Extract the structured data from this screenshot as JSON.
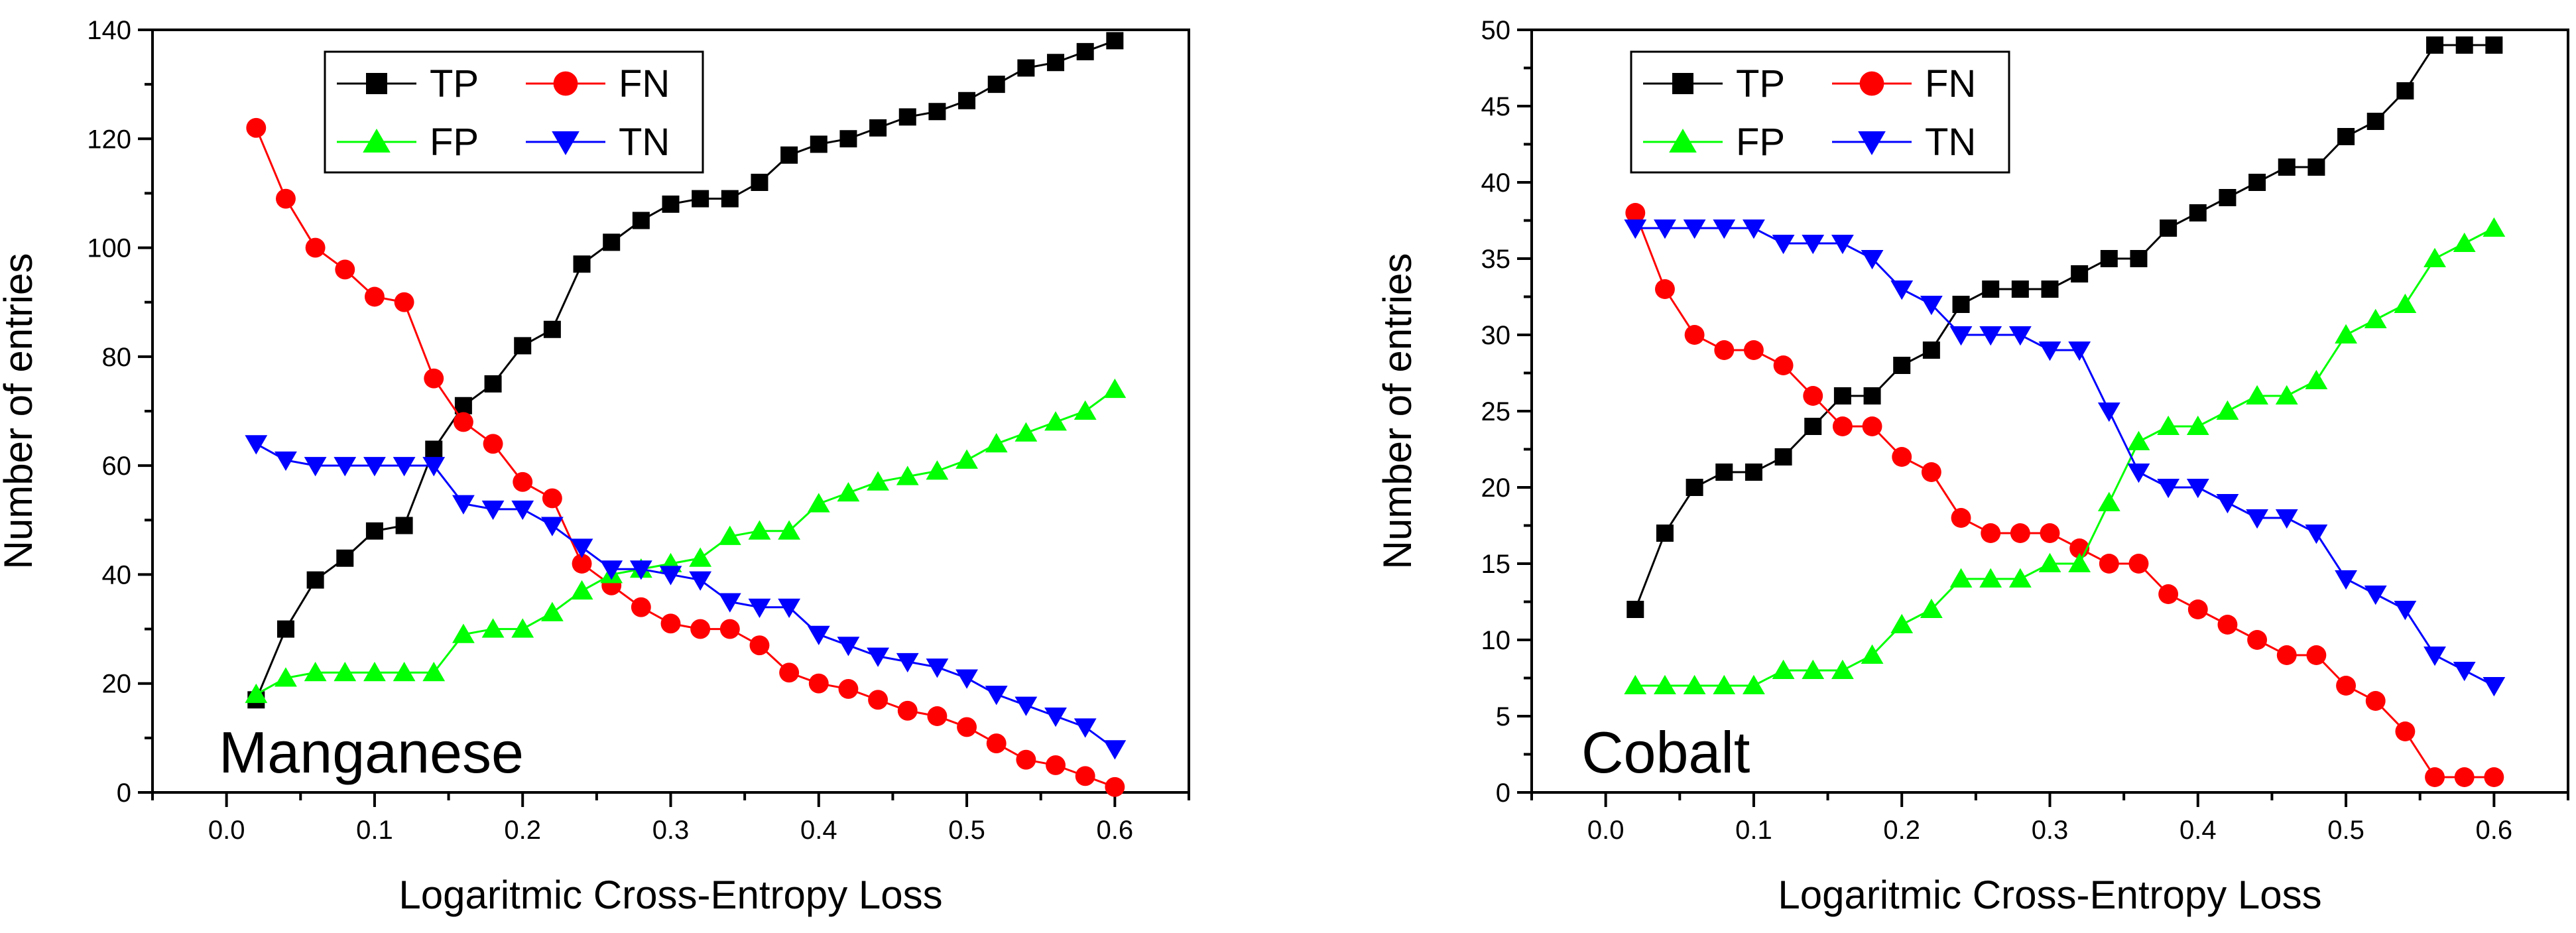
{
  "chart_data": [
    {
      "type": "line",
      "title": "",
      "panel_label": "Manganese",
      "xlabel": "Logaritmic Cross-Entropy Loss",
      "ylabel": "Number of entries",
      "xlim": [
        -0.05,
        0.65
      ],
      "ylim": [
        0,
        140
      ],
      "xticks": [
        "0.0",
        "0.1",
        "0.2",
        "0.3",
        "0.4",
        "0.5",
        "0.6"
      ],
      "xtick_values": [
        0.0,
        0.1,
        0.2,
        0.3,
        0.4,
        0.5,
        0.6
      ],
      "yticks": [
        "0",
        "20",
        "40",
        "60",
        "80",
        "100",
        "120",
        "140"
      ],
      "ytick_values": [
        0,
        20,
        40,
        60,
        80,
        100,
        120,
        140
      ],
      "legend_position": "top-left",
      "x": [
        0.02,
        0.04,
        0.06,
        0.08,
        0.1,
        0.12,
        0.14,
        0.16,
        0.18,
        0.2,
        0.22,
        0.24,
        0.26,
        0.28,
        0.3,
        0.32,
        0.34,
        0.36,
        0.38,
        0.4,
        0.42,
        0.44,
        0.46,
        0.48,
        0.5,
        0.52,
        0.54,
        0.56,
        0.58,
        0.6
      ],
      "series": [
        {
          "name": "TP",
          "color": "#000000",
          "marker": "square",
          "values": [
            17,
            30,
            39,
            43,
            48,
            49,
            63,
            71,
            75,
            82,
            85,
            97,
            101,
            105,
            108,
            109,
            109,
            112,
            117,
            119,
            120,
            122,
            124,
            125,
            127,
            130,
            133,
            134,
            136,
            138
          ]
        },
        {
          "name": "FN",
          "color": "#ff0000",
          "marker": "circle",
          "values": [
            122,
            109,
            100,
            96,
            91,
            90,
            76,
            68,
            64,
            57,
            54,
            42,
            38,
            34,
            31,
            30,
            30,
            27,
            22,
            20,
            19,
            17,
            15,
            14,
            12,
            9,
            6,
            5,
            3,
            1
          ]
        },
        {
          "name": "FP",
          "color": "#00ff00",
          "marker": "triangle-up",
          "values": [
            18,
            21,
            22,
            22,
            22,
            22,
            22,
            29,
            30,
            30,
            33,
            37,
            40,
            41,
            42,
            43,
            47,
            48,
            48,
            53,
            55,
            57,
            58,
            59,
            61,
            64,
            66,
            68,
            70,
            74
          ]
        },
        {
          "name": "TN",
          "color": "#0000ff",
          "marker": "triangle-down",
          "values": [
            64,
            61,
            60,
            60,
            60,
            60,
            60,
            53,
            52,
            52,
            49,
            45,
            41,
            41,
            40,
            39,
            35,
            34,
            34,
            29,
            27,
            25,
            24,
            23,
            21,
            18,
            16,
            14,
            12,
            8
          ]
        }
      ]
    },
    {
      "type": "line",
      "title": "",
      "panel_label": "Cobalt",
      "xlabel": "Logaritmic Cross-Entropy Loss",
      "ylabel": "Number of entries",
      "xlim": [
        -0.05,
        0.65
      ],
      "ylim": [
        0,
        50
      ],
      "xticks": [
        "0.0",
        "0.1",
        "0.2",
        "0.3",
        "0.4",
        "0.5",
        "0.6"
      ],
      "xtick_values": [
        0.0,
        0.1,
        0.2,
        0.3,
        0.4,
        0.5,
        0.6
      ],
      "yticks": [
        "0",
        "5",
        "10",
        "15",
        "20",
        "25",
        "30",
        "35",
        "40",
        "45",
        "50"
      ],
      "ytick_values": [
        0,
        5,
        10,
        15,
        20,
        25,
        30,
        35,
        40,
        45,
        50
      ],
      "legend_position": "top-left",
      "x": [
        0.02,
        0.04,
        0.06,
        0.08,
        0.1,
        0.12,
        0.14,
        0.16,
        0.18,
        0.2,
        0.22,
        0.24,
        0.26,
        0.28,
        0.3,
        0.32,
        0.34,
        0.36,
        0.38,
        0.4,
        0.42,
        0.44,
        0.46,
        0.48,
        0.5,
        0.52,
        0.54,
        0.56,
        0.58,
        0.6
      ],
      "series": [
        {
          "name": "TP",
          "color": "#000000",
          "marker": "square",
          "values": [
            12,
            17,
            20,
            21,
            21,
            22,
            24,
            26,
            26,
            28,
            29,
            32,
            33,
            33,
            33,
            34,
            35,
            35,
            37,
            38,
            39,
            40,
            41,
            41,
            43,
            44,
            46,
            49,
            49,
            49
          ]
        },
        {
          "name": "FN",
          "color": "#ff0000",
          "marker": "circle",
          "values": [
            38,
            33,
            30,
            29,
            29,
            28,
            26,
            24,
            24,
            22,
            21,
            18,
            17,
            17,
            17,
            16,
            15,
            15,
            13,
            12,
            11,
            10,
            9,
            9,
            7,
            6,
            4,
            1,
            1,
            1
          ]
        },
        {
          "name": "FP",
          "color": "#00ff00",
          "marker": "triangle-up",
          "values": [
            7,
            7,
            7,
            7,
            7,
            8,
            8,
            8,
            9,
            11,
            12,
            14,
            14,
            14,
            15,
            15,
            19,
            23,
            24,
            24,
            25,
            26,
            26,
            27,
            30,
            31,
            32,
            35,
            36,
            37
          ]
        },
        {
          "name": "TN",
          "color": "#0000ff",
          "marker": "triangle-down",
          "values": [
            37,
            37,
            37,
            37,
            37,
            36,
            36,
            36,
            35,
            33,
            32,
            30,
            30,
            30,
            29,
            29,
            25,
            21,
            20,
            20,
            19,
            18,
            18,
            17,
            14,
            13,
            12,
            9,
            8,
            7
          ]
        }
      ]
    }
  ]
}
